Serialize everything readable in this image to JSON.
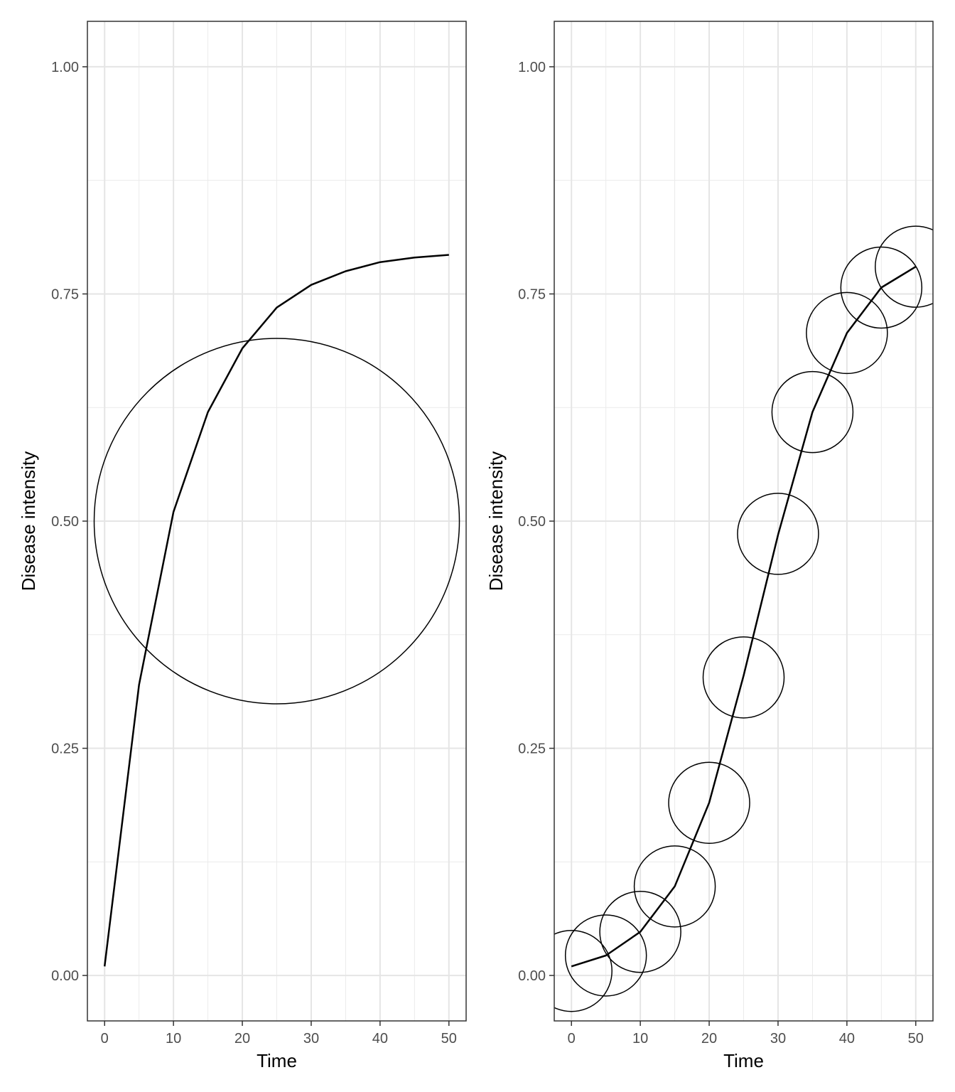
{
  "chart_data": [
    {
      "type": "line",
      "xlabel": "Time",
      "ylabel": "Disease intensity",
      "xlim": [
        -2.5,
        52.5
      ],
      "ylim": [
        -0.05,
        1.05
      ],
      "x_ticks": [
        0,
        10,
        20,
        30,
        40,
        50
      ],
      "x_tick_labels": [
        "0",
        "10",
        "20",
        "30",
        "40",
        "50"
      ],
      "y_ticks": [
        0,
        0.25,
        0.5,
        0.75,
        1.0
      ],
      "y_tick_labels": [
        "0.00",
        "0.25",
        "0.50",
        "0.75",
        "1.00"
      ],
      "grid": true,
      "series": [
        {
          "x": [
            0,
            5,
            10,
            15,
            20,
            25,
            30,
            35,
            40,
            45,
            50
          ],
          "y": [
            0.01,
            0.32,
            0.51,
            0.62,
            0.69,
            0.735,
            0.76,
            0.775,
            0.785,
            0.79,
            0.793
          ]
        }
      ],
      "points": [
        {
          "x": 25,
          "y": 0.5,
          "size": 1
        }
      ]
    },
    {
      "type": "line",
      "xlabel": "Time",
      "ylabel": "Disease intensity",
      "xlim": [
        -2.5,
        52.5
      ],
      "ylim": [
        -0.05,
        1.05
      ],
      "x_ticks": [
        0,
        10,
        20,
        30,
        40,
        50
      ],
      "x_tick_labels": [
        "0",
        "10",
        "20",
        "30",
        "40",
        "50"
      ],
      "y_ticks": [
        0,
        0.25,
        0.5,
        0.75,
        1.0
      ],
      "y_tick_labels": [
        "0.00",
        "0.25",
        "0.50",
        "0.75",
        "1.00"
      ],
      "grid": true,
      "series": [
        {
          "x": [
            0,
            5,
            10,
            15,
            20,
            25,
            30,
            35,
            40,
            45,
            50
          ],
          "y": [
            0.01,
            0.022,
            0.048,
            0.098,
            0.19,
            0.33,
            0.485,
            0.62,
            0.707,
            0.757,
            0.78
          ]
        }
      ],
      "points": [
        {
          "x": 0,
          "y": 0.005,
          "size": 1
        },
        {
          "x": 5,
          "y": 0.022,
          "size": 1
        },
        {
          "x": 10,
          "y": 0.048,
          "size": 1
        },
        {
          "x": 15,
          "y": 0.098,
          "size": 1
        },
        {
          "x": 20,
          "y": 0.19,
          "size": 1
        },
        {
          "x": 25,
          "y": 0.328,
          "size": 1
        },
        {
          "x": 30,
          "y": 0.486,
          "size": 1
        },
        {
          "x": 35,
          "y": 0.62,
          "size": 1
        },
        {
          "x": 40,
          "y": 0.707,
          "size": 1
        },
        {
          "x": 45,
          "y": 0.757,
          "size": 1
        },
        {
          "x": 50,
          "y": 0.78,
          "size": 1
        }
      ]
    }
  ]
}
